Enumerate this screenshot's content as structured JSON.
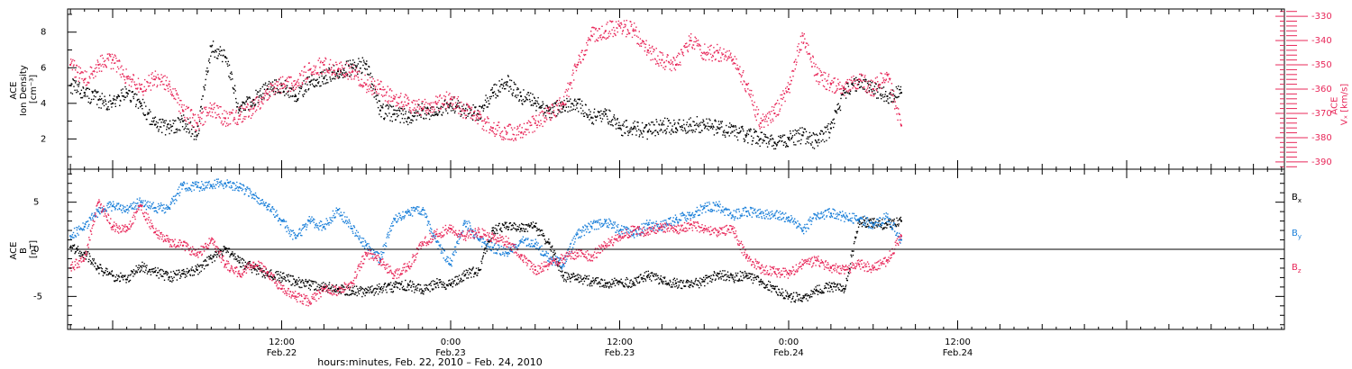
{
  "figure": {
    "xlabel": "hours:minutes, Feb. 22, 2010 – Feb. 24, 2010",
    "time_range_hours": [
      -3.2,
      83.2
    ],
    "x_ticks": [
      {
        "hours": 12,
        "time": "12:00",
        "date": "Feb.22"
      },
      {
        "hours": 24,
        "time": "0:00",
        "date": "Feb.23"
      },
      {
        "hours": 36,
        "time": "12:00",
        "date": "Feb.23"
      },
      {
        "hours": 48,
        "time": "0:00",
        "date": "Feb.24"
      },
      {
        "hours": 60,
        "time": "12:00",
        "date": "Feb.24"
      }
    ]
  },
  "colors": {
    "density": "#000000",
    "vx": "#e8285a",
    "bx": "#000000",
    "by": "#1a7fd9",
    "bz": "#e8285a",
    "axis": "#000000"
  },
  "chart_data": [
    {
      "type": "scatter",
      "panel": "plasma",
      "left_ylabel": [
        "ACE",
        "Ion Density",
        "[cm⁻³]"
      ],
      "right_ylabel": [
        "ACE",
        "Vₓ [km/s]"
      ],
      "ylim": [
        0.3,
        9.3
      ],
      "yticks": [
        2,
        4,
        6,
        8
      ],
      "y2lim": [
        -393,
        -327
      ],
      "y2ticks": [
        -330,
        -340,
        -350,
        -360,
        -370,
        -380,
        -390
      ],
      "series": [
        {
          "name": "",
          "axis": "left",
          "color_key": "density",
          "x": [
            -3,
            -2,
            -1,
            0,
            1,
            2,
            3,
            4,
            5,
            6,
            7,
            8,
            9,
            10,
            11,
            12,
            13,
            14,
            15,
            16,
            17,
            18,
            19,
            20,
            21,
            22,
            23,
            24,
            25,
            26,
            27,
            28,
            29,
            30,
            31,
            32,
            33,
            34,
            35,
            36,
            37,
            38,
            39,
            40,
            41,
            42,
            43,
            44,
            45,
            46,
            47,
            48,
            49,
            50,
            51,
            52,
            53,
            54,
            55,
            56
          ],
          "y": [
            5.0,
            4.6,
            4.2,
            4.0,
            4.6,
            4.0,
            2.8,
            2.6,
            3.0,
            2.2,
            7.2,
            6.6,
            3.6,
            4.2,
            4.8,
            5.0,
            4.4,
            5.2,
            5.4,
            5.8,
            6.0,
            6.2,
            3.6,
            3.4,
            3.2,
            3.6,
            3.4,
            4.0,
            3.6,
            3.4,
            4.6,
            5.2,
            4.4,
            4.0,
            3.6,
            3.8,
            4.0,
            3.2,
            3.4,
            2.6,
            2.6,
            2.4,
            2.8,
            2.6,
            2.8,
            2.8,
            2.6,
            2.4,
            2.2,
            2.0,
            1.8,
            2.0,
            2.2,
            1.8,
            2.6,
            4.6,
            5.2,
            4.8,
            4.4,
            4.6
          ]
        },
        {
          "name": "",
          "axis": "right",
          "color_key": "vx",
          "x": [
            -3,
            -2,
            -1,
            0,
            1,
            2,
            3,
            4,
            5,
            6,
            7,
            8,
            9,
            10,
            11,
            12,
            13,
            14,
            15,
            16,
            17,
            18,
            19,
            20,
            21,
            22,
            23,
            24,
            25,
            26,
            27,
            28,
            29,
            30,
            31,
            32,
            33,
            34,
            35,
            36,
            37,
            38,
            39,
            40,
            41,
            42,
            43,
            44,
            45,
            46,
            47,
            48,
            49,
            50,
            51,
            52,
            53,
            54,
            55,
            56
          ],
          "y": [
            -350,
            -356,
            -350,
            -348,
            -355,
            -360,
            -356,
            -358,
            -369,
            -374,
            -368,
            -372,
            -371,
            -368,
            -362,
            -358,
            -358,
            -352,
            -350,
            -352,
            -353,
            -358,
            -360,
            -364,
            -366,
            -368,
            -366,
            -364,
            -369,
            -372,
            -376,
            -378,
            -378,
            -374,
            -370,
            -366,
            -350,
            -338,
            -336,
            -334,
            -336,
            -344,
            -348,
            -350,
            -340,
            -345,
            -345,
            -348,
            -358,
            -374,
            -370,
            -360,
            -338,
            -354,
            -358,
            -360,
            -356,
            -360,
            -354,
            -375
          ]
        }
      ]
    },
    {
      "type": "scatter",
      "panel": "magnetic_field",
      "left_ylabel": [
        "ACE",
        "B",
        "[nT]"
      ],
      "ylim": [
        -8.5,
        8.5
      ],
      "yticks": [
        5,
        0,
        -5
      ],
      "zero_line": true,
      "series": [
        {
          "name": "Bx",
          "label": "B",
          "sub": "x",
          "color_key": "bx",
          "x": [
            -3,
            -2,
            -1,
            0,
            1,
            2,
            3,
            4,
            5,
            6,
            7,
            8,
            9,
            10,
            11,
            12,
            13,
            14,
            15,
            16,
            17,
            18,
            19,
            20,
            21,
            22,
            23,
            24,
            25,
            26,
            27,
            28,
            29,
            30,
            31,
            32,
            33,
            34,
            35,
            36,
            37,
            38,
            39,
            40,
            41,
            42,
            43,
            44,
            45,
            46,
            47,
            48,
            49,
            50,
            51,
            52,
            53,
            54,
            55,
            56
          ],
          "y": [
            0.2,
            -0.4,
            -2.0,
            -2.8,
            -3.2,
            -1.8,
            -2.4,
            -3.0,
            -2.6,
            -2.2,
            -1.0,
            0.0,
            -1.4,
            -2.0,
            -2.6,
            -3.0,
            -3.4,
            -3.8,
            -4.0,
            -4.2,
            -4.4,
            -4.6,
            -4.2,
            -4.0,
            -3.8,
            -4.4,
            -3.6,
            -3.8,
            -2.8,
            -2.2,
            2.0,
            2.4,
            2.2,
            2.4,
            0.6,
            -2.8,
            -3.2,
            -3.4,
            -3.6,
            -3.4,
            -3.6,
            -2.8,
            -3.4,
            -3.6,
            -3.8,
            -3.4,
            -2.6,
            -3.0,
            -2.8,
            -3.4,
            -4.2,
            -5.0,
            -5.2,
            -4.4,
            -4.0,
            -4.2,
            3.0,
            2.8,
            2.6,
            3.0
          ]
        },
        {
          "name": "By",
          "label": "B",
          "sub": "y",
          "color_key": "by",
          "x": [
            -3,
            -2,
            -1,
            0,
            1,
            2,
            3,
            4,
            5,
            6,
            7,
            8,
            9,
            10,
            11,
            12,
            13,
            14,
            15,
            16,
            17,
            18,
            19,
            20,
            21,
            22,
            23,
            24,
            25,
            26,
            27,
            28,
            29,
            30,
            31,
            32,
            33,
            34,
            35,
            36,
            37,
            38,
            39,
            40,
            41,
            42,
            43,
            44,
            45,
            46,
            47,
            48,
            49,
            50,
            51,
            52,
            53,
            54,
            55,
            56
          ],
          "y": [
            1.4,
            2.4,
            4.0,
            4.6,
            4.2,
            5.0,
            4.4,
            4.4,
            6.8,
            6.6,
            6.8,
            7.0,
            6.6,
            5.8,
            4.6,
            3.0,
            1.2,
            3.0,
            2.4,
            4.2,
            2.2,
            0.4,
            -1.0,
            3.2,
            4.0,
            4.2,
            0.8,
            -1.6,
            3.0,
            1.0,
            0.2,
            -0.4,
            0.8,
            0.6,
            -1.0,
            -1.6,
            1.6,
            2.4,
            3.0,
            2.0,
            1.6,
            2.6,
            2.4,
            3.2,
            3.6,
            4.4,
            4.6,
            3.6,
            4.0,
            3.8,
            3.6,
            3.4,
            2.0,
            3.6,
            3.8,
            3.4,
            3.2,
            2.6,
            3.4,
            1.0
          ]
        },
        {
          "name": "Bz",
          "label": "B",
          "sub": "z",
          "color_key": "bz",
          "x": [
            -3,
            -2,
            -1,
            0,
            1,
            2,
            3,
            4,
            5,
            6,
            7,
            8,
            9,
            10,
            11,
            12,
            13,
            14,
            15,
            16,
            17,
            18,
            19,
            20,
            21,
            22,
            23,
            24,
            25,
            26,
            27,
            28,
            29,
            30,
            31,
            32,
            33,
            34,
            35,
            36,
            37,
            38,
            39,
            40,
            41,
            42,
            43,
            44,
            45,
            46,
            47,
            48,
            49,
            50,
            51,
            52,
            53,
            54,
            55,
            56
          ],
          "y": [
            -2.0,
            -1.0,
            5.0,
            2.4,
            2.0,
            4.6,
            1.8,
            0.8,
            0.4,
            -0.6,
            1.0,
            -1.6,
            -2.6,
            -1.4,
            -2.4,
            -4.2,
            -5.0,
            -5.6,
            -4.2,
            -4.4,
            -3.6,
            -0.4,
            -1.2,
            -2.8,
            -1.8,
            0.6,
            1.6,
            2.2,
            1.4,
            1.8,
            1.2,
            0.8,
            -0.6,
            -2.2,
            -1.6,
            -1.0,
            -0.4,
            -0.8,
            0.4,
            1.4,
            2.0,
            1.8,
            2.4,
            2.0,
            2.6,
            2.2,
            1.8,
            2.2,
            -0.8,
            -2.0,
            -2.4,
            -2.6,
            -1.6,
            -1.2,
            -2.0,
            -2.2,
            -1.6,
            -2.0,
            -1.2,
            1.4
          ]
        }
      ]
    }
  ]
}
